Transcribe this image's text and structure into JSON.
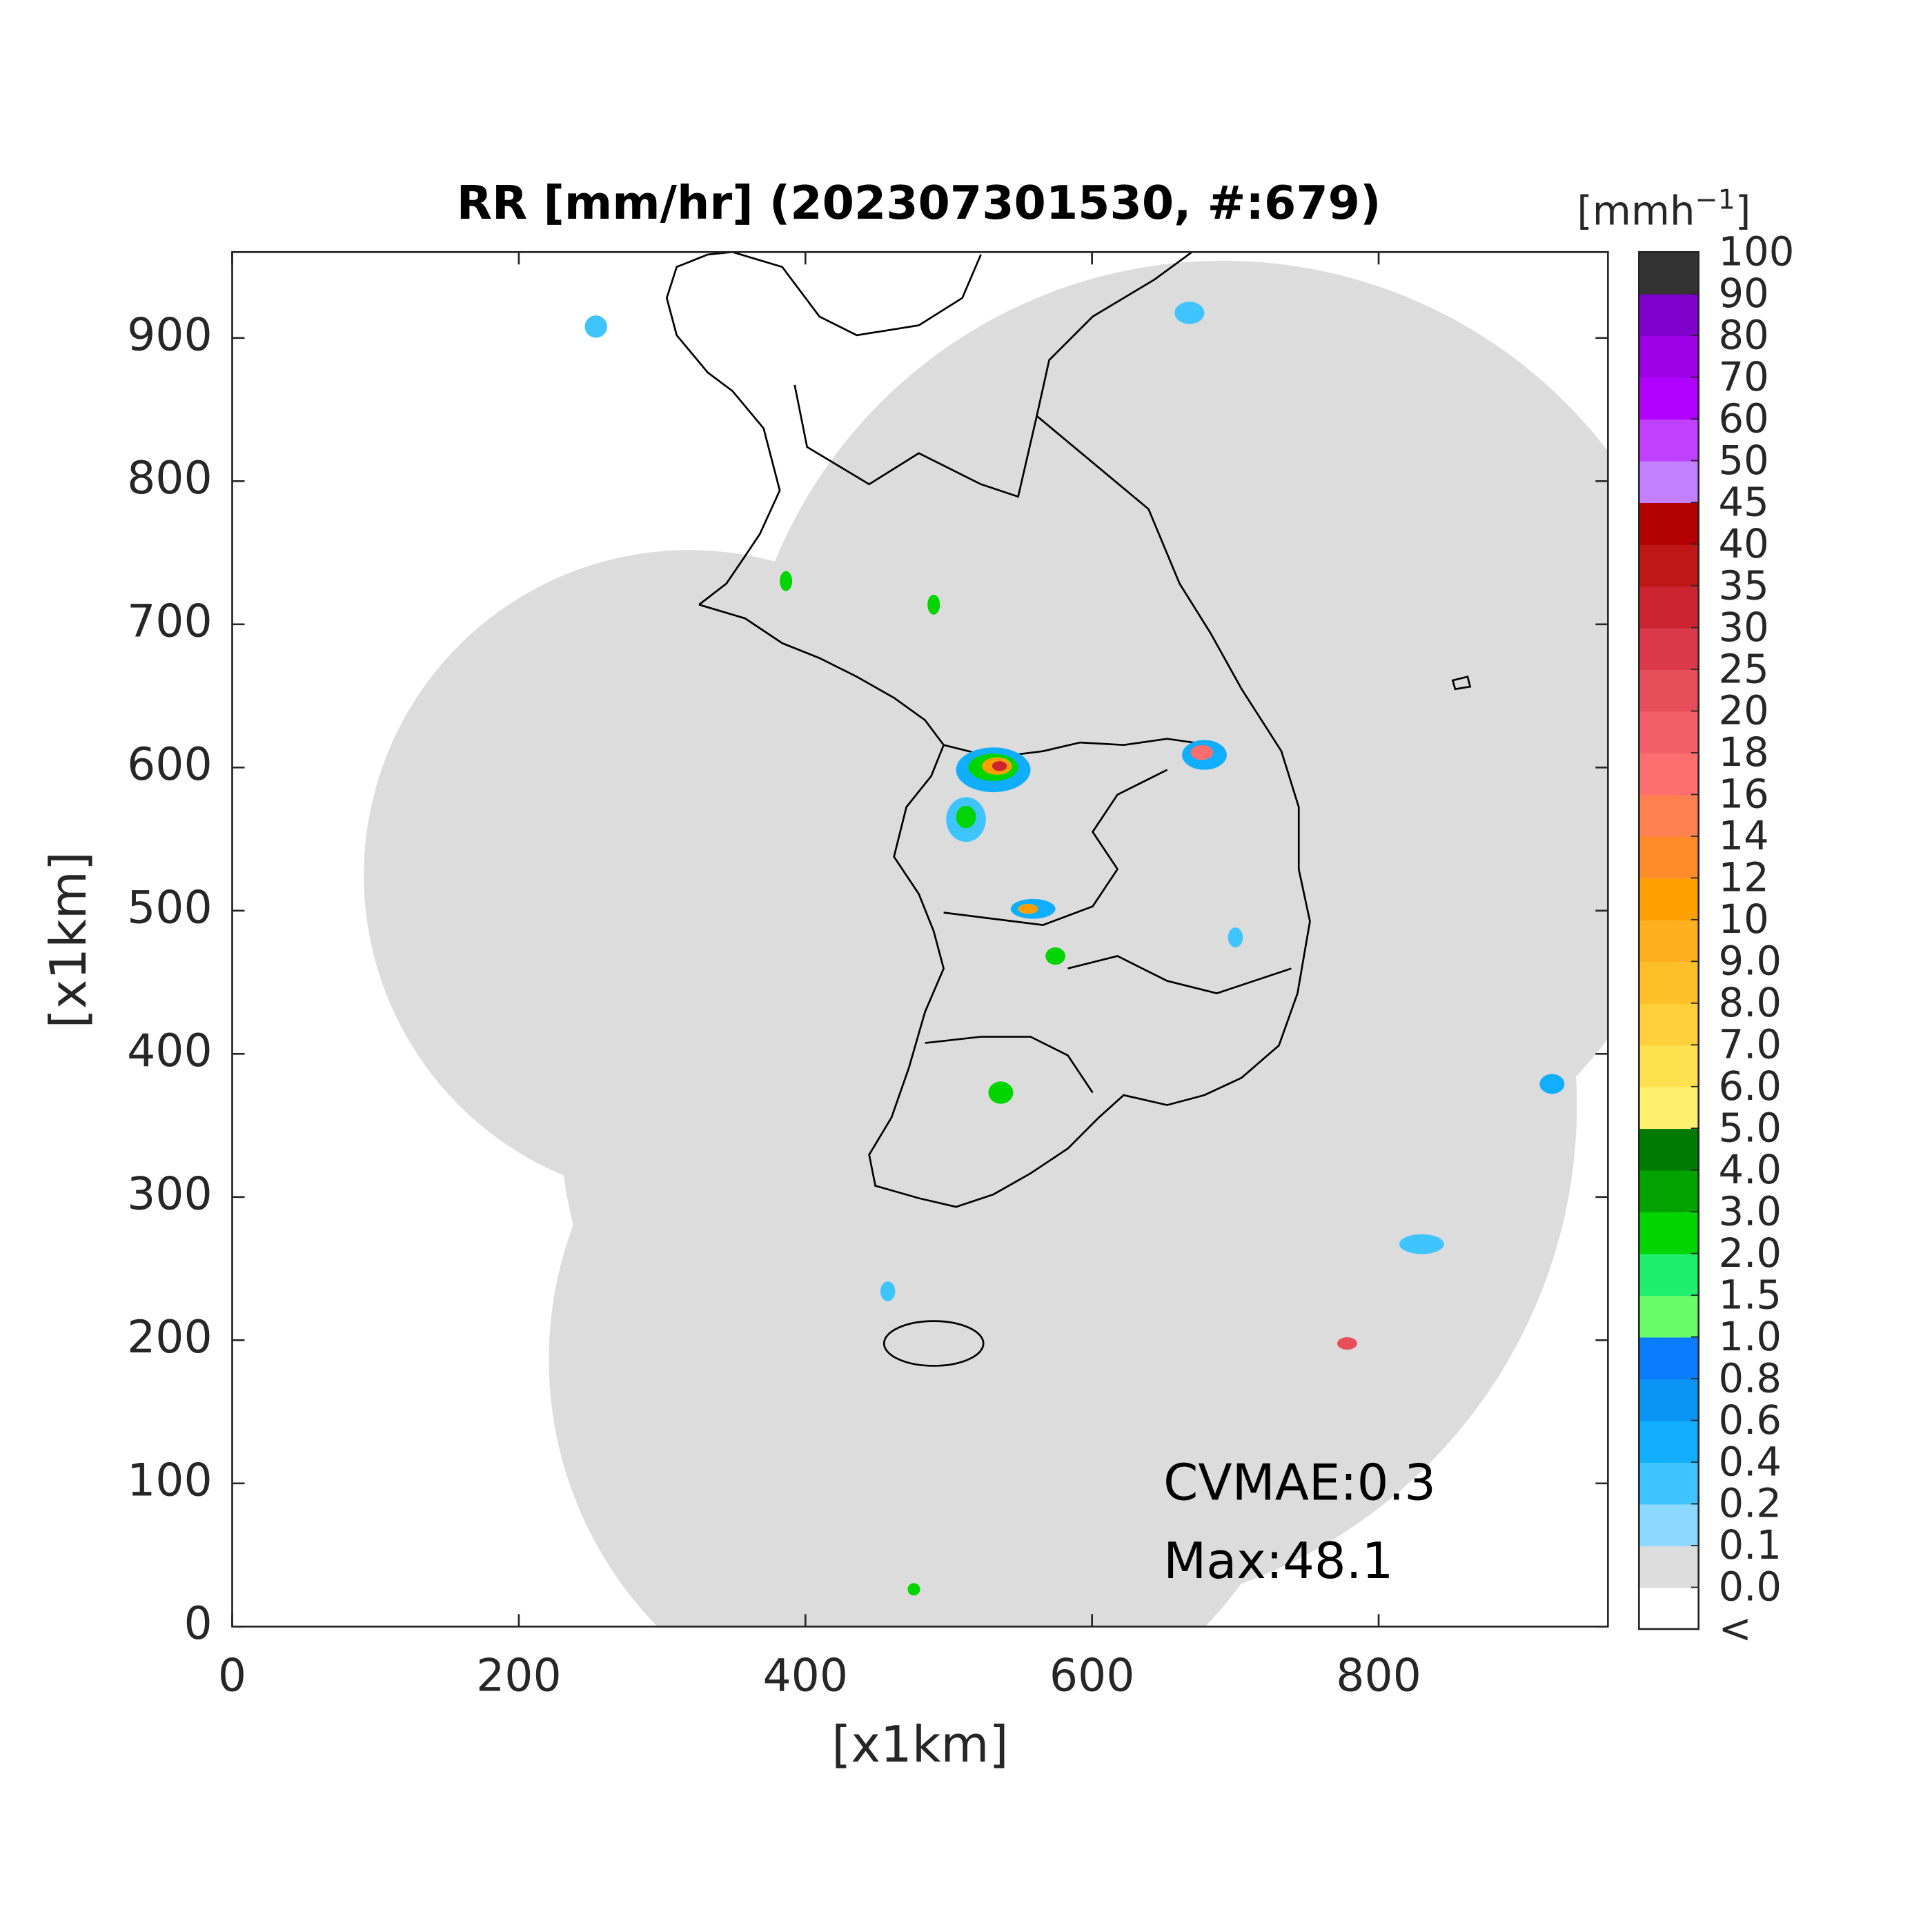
{
  "chart_data": {
    "type": "map",
    "title": "RR [mm/hr] (202307301530, #:679)",
    "x_label": "[x1km]",
    "y_label": "[x1km]",
    "xlim": [
      0,
      960
    ],
    "ylim": [
      0,
      960
    ],
    "xticks": [
      0,
      200,
      400,
      600,
      800
    ],
    "yticks": [
      0,
      100,
      200,
      300,
      400,
      500,
      600,
      700,
      800,
      900
    ],
    "annotations": [
      "CVMAE:0.3",
      "Max:48.1"
    ],
    "colorbar": {
      "title_base": "[mmh",
      "title_exponent": "−1",
      "title_end": "]",
      "under_label": "<",
      "levels": [
        {
          "value": 0,
          "label": "0.0"
        },
        0.1,
        0.2,
        0.4,
        0.6,
        0.8,
        {
          "value": 1,
          "label": "1.0"
        },
        1.5,
        {
          "value": 2,
          "label": "2.0"
        },
        {
          "value": 3,
          "label": "3.0"
        },
        {
          "value": 4,
          "label": "4.0"
        },
        {
          "value": 5,
          "label": "5.0"
        },
        {
          "value": 6,
          "label": "6.0"
        },
        {
          "value": 7,
          "label": "7.0"
        },
        {
          "value": 8,
          "label": "8.0"
        },
        {
          "value": 9,
          "label": "9.0"
        },
        10,
        12,
        14,
        16,
        18,
        20,
        25,
        30,
        35,
        40,
        45,
        50,
        60,
        70,
        80,
        90,
        100
      ],
      "colors": [
        "#ffffff",
        "#dcdcdc",
        "#8cd8ff",
        "#40c4ff",
        "#10aefc",
        "#0a94f5",
        "#0a7cff",
        "#69fc69",
        "#1ef06e",
        "#00d500",
        "#00a300",
        "#007a00",
        "#fff06e",
        "#ffe150",
        "#ffd03c",
        "#ffbf28",
        "#ffb01e",
        "#ffa000",
        "#ff8c28",
        "#ff8050",
        "#ff6e6e",
        "#f36069",
        "#e64e5a",
        "#d9394b",
        "#cc2531",
        "#bf1616",
        "#b30000",
        "#c380ff",
        "#c040ff",
        "#b000ff",
        "#9d00e6",
        "#8000cc",
        "#333333"
      ]
    }
  }
}
